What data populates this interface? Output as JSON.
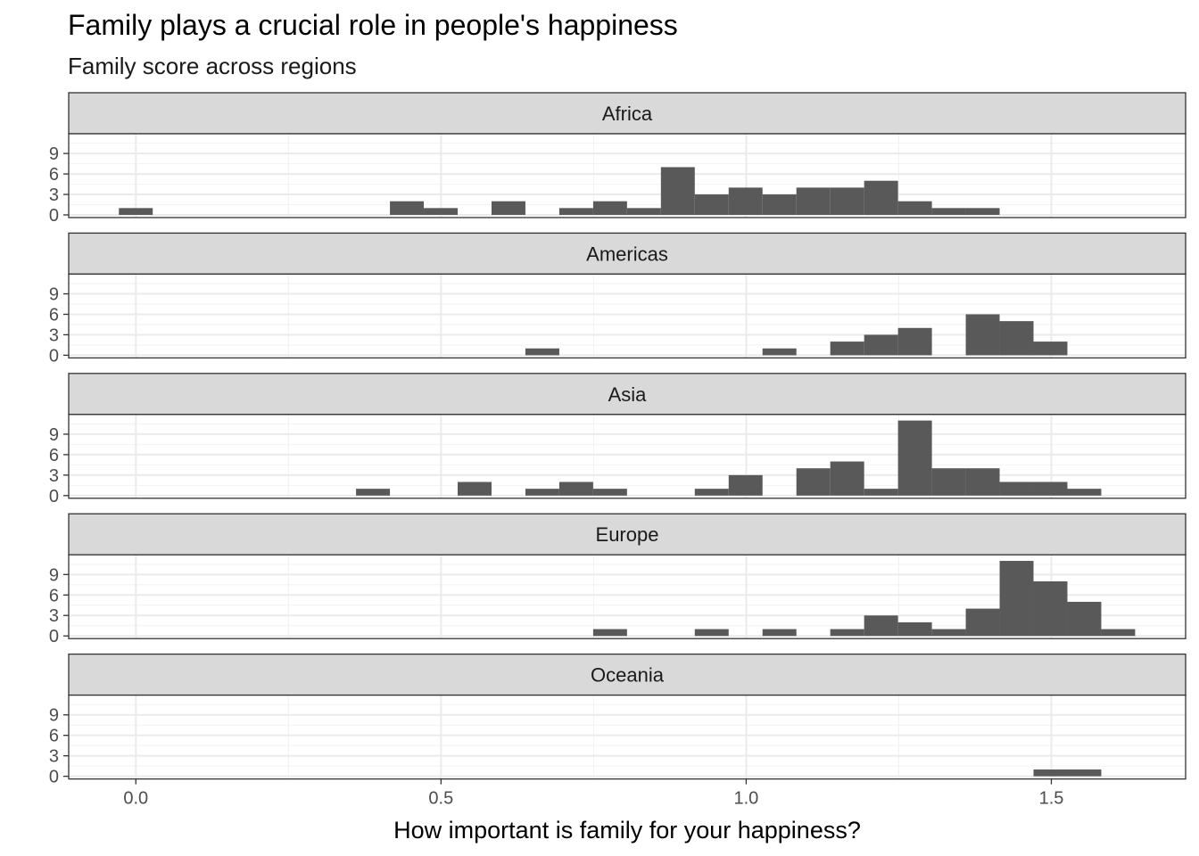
{
  "chart_data": {
    "type": "bar",
    "title": "Family plays a crucial role in people's happiness",
    "subtitle": "Family score across regions",
    "xlabel": "How important is family for your happiness?",
    "ylabel": "",
    "xlim": [
      -0.11,
      1.72
    ],
    "ylim": [
      0,
      11.5
    ],
    "x_ticks": [
      "0.0",
      "0.5",
      "1.0",
      "1.5"
    ],
    "y_ticks": [
      "0",
      "3",
      "6",
      "9"
    ],
    "bin_width": 0.0555,
    "bin_starts": [
      -0.0278,
      0.0278,
      0.0833,
      0.1388,
      0.1943,
      0.2498,
      0.3053,
      0.3608,
      0.4163,
      0.4718,
      0.5273,
      0.5828,
      0.6383,
      0.6938,
      0.7493,
      0.8048,
      0.8603,
      0.9158,
      0.9713,
      1.0268,
      1.0823,
      1.1378,
      1.1933,
      1.2488,
      1.3043,
      1.3598,
      1.4153,
      1.4708,
      1.5263,
      1.5818,
      1.6373
    ],
    "panels": [
      {
        "name": "Africa",
        "counts": [
          1,
          0,
          0,
          0,
          0,
          0,
          0,
          0,
          2,
          1,
          0,
          2,
          0,
          1,
          2,
          1,
          7,
          3,
          4,
          3,
          4,
          4,
          5,
          2,
          1,
          1,
          0,
          0,
          0,
          0,
          0
        ]
      },
      {
        "name": "Americas",
        "counts": [
          0,
          0,
          0,
          0,
          0,
          0,
          0,
          0,
          0,
          0,
          0,
          0,
          1,
          0,
          0,
          0,
          0,
          0,
          0,
          1,
          0,
          2,
          3,
          4,
          0,
          6,
          5,
          2,
          0,
          0,
          0
        ]
      },
      {
        "name": "Asia",
        "counts": [
          0,
          0,
          0,
          0,
          0,
          0,
          0,
          1,
          0,
          0,
          2,
          0,
          1,
          2,
          1,
          0,
          0,
          1,
          3,
          0,
          4,
          5,
          1,
          11,
          4,
          4,
          2,
          2,
          1,
          0,
          0
        ]
      },
      {
        "name": "Europe",
        "counts": [
          0,
          0,
          0,
          0,
          0,
          0,
          0,
          0,
          0,
          0,
          0,
          0,
          0,
          0,
          1,
          0,
          0,
          1,
          0,
          1,
          0,
          1,
          3,
          2,
          1,
          4,
          11,
          8,
          5,
          1,
          0
        ]
      },
      {
        "name": "Oceania",
        "counts": [
          0,
          0,
          0,
          0,
          0,
          0,
          0,
          0,
          0,
          0,
          0,
          0,
          0,
          0,
          0,
          0,
          0,
          0,
          0,
          0,
          0,
          0,
          0,
          0,
          0,
          0,
          0,
          1,
          1,
          0,
          0
        ]
      }
    ],
    "grid": true,
    "bar_color": "#595959",
    "strip_color": "#d9d9d9",
    "legend": "none"
  }
}
